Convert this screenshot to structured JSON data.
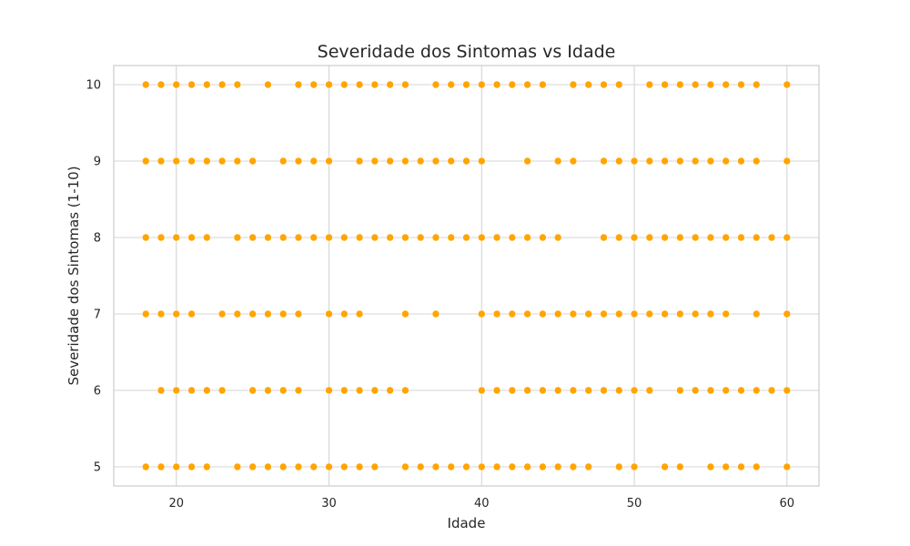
{
  "chart_data": {
    "type": "scatter",
    "title": "Severidade dos Sintomas vs Idade",
    "xlabel": "Idade",
    "ylabel": "Severidade dos Sintomas (1-10)",
    "xlim": [
      15.9,
      62.1
    ],
    "ylim": [
      4.75,
      10.25
    ],
    "xticks": [
      20,
      30,
      40,
      50,
      60
    ],
    "yticks": [
      5,
      6,
      7,
      8,
      9,
      10
    ],
    "grid": true,
    "legend": "none",
    "marker_color": "#ffa500",
    "points_by_severity": {
      "10": [
        18,
        19,
        20,
        21,
        22,
        23,
        24,
        26,
        28,
        29,
        30,
        31,
        32,
        33,
        34,
        35,
        37,
        38,
        39,
        40,
        41,
        42,
        43,
        44,
        46,
        47,
        48,
        49,
        51,
        52,
        53,
        54,
        55,
        56,
        57,
        58,
        60
      ],
      "9": [
        18,
        19,
        20,
        21,
        22,
        23,
        24,
        25,
        27,
        28,
        29,
        30,
        32,
        33,
        34,
        35,
        36,
        37,
        38,
        39,
        40,
        43,
        45,
        46,
        48,
        49,
        50,
        51,
        52,
        53,
        54,
        55,
        56,
        57,
        58,
        60
      ],
      "8": [
        18,
        19,
        20,
        21,
        22,
        24,
        25,
        26,
        27,
        28,
        29,
        30,
        31,
        32,
        33,
        34,
        35,
        36,
        37,
        38,
        39,
        40,
        41,
        42,
        43,
        44,
        45,
        48,
        49,
        50,
        51,
        52,
        53,
        54,
        55,
        56,
        57,
        58,
        59,
        60
      ],
      "7": [
        18,
        19,
        20,
        21,
        23,
        24,
        25,
        26,
        27,
        28,
        30,
        31,
        32,
        35,
        37,
        40,
        41,
        42,
        43,
        44,
        45,
        46,
        47,
        48,
        49,
        50,
        51,
        52,
        53,
        54,
        55,
        56,
        58,
        60
      ],
      "6": [
        19,
        20,
        21,
        22,
        23,
        25,
        26,
        27,
        28,
        30,
        31,
        32,
        33,
        34,
        35,
        40,
        41,
        42,
        43,
        44,
        45,
        46,
        47,
        48,
        49,
        50,
        51,
        53,
        54,
        55,
        56,
        57,
        58,
        59,
        60
      ],
      "5": [
        18,
        19,
        20,
        21,
        22,
        24,
        25,
        26,
        27,
        28,
        29,
        30,
        31,
        32,
        33,
        35,
        36,
        37,
        38,
        39,
        40,
        41,
        42,
        43,
        44,
        45,
        46,
        47,
        49,
        50,
        52,
        53,
        55,
        56,
        57,
        58,
        60
      ]
    }
  }
}
